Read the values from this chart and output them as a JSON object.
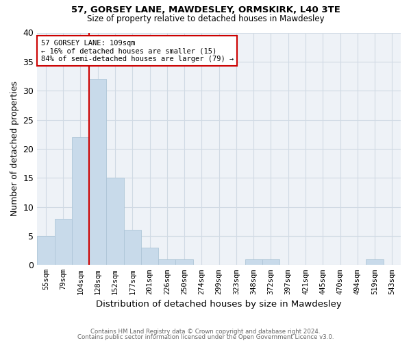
{
  "title1": "57, GORSEY LANE, MAWDESLEY, ORMSKIRK, L40 3TE",
  "title2": "Size of property relative to detached houses in Mawdesley",
  "xlabel": "Distribution of detached houses by size in Mawdesley",
  "ylabel": "Number of detached properties",
  "bins": [
    "55sqm",
    "79sqm",
    "104sqm",
    "128sqm",
    "152sqm",
    "177sqm",
    "201sqm",
    "226sqm",
    "250sqm",
    "274sqm",
    "299sqm",
    "323sqm",
    "348sqm",
    "372sqm",
    "397sqm",
    "421sqm",
    "445sqm",
    "470sqm",
    "494sqm",
    "519sqm",
    "543sqm"
  ],
  "values": [
    5,
    8,
    22,
    32,
    15,
    6,
    3,
    1,
    1,
    0,
    0,
    0,
    1,
    1,
    0,
    0,
    0,
    0,
    0,
    1,
    0
  ],
  "bar_color": "#c8daea",
  "bar_edge_color": "#aec6d8",
  "annotation_text": "57 GORSEY LANE: 109sqm\n← 16% of detached houses are smaller (15)\n84% of semi-detached houses are larger (79) →",
  "annotation_box_color": "#ffffff",
  "annotation_box_edge": "#cc0000",
  "ylim": [
    0,
    40
  ],
  "yticks": [
    0,
    5,
    10,
    15,
    20,
    25,
    30,
    35,
    40
  ],
  "footer1": "Contains HM Land Registry data © Crown copyright and database right 2024.",
  "footer2": "Contains public sector information licensed under the Open Government Licence v3.0.",
  "grid_color": "#d0dae4",
  "background_color": "#eef2f7"
}
